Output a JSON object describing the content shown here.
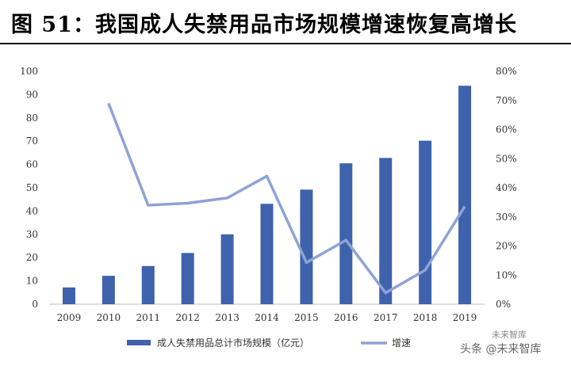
{
  "title": "图 51：我国成人失禁用品市场规模增速恢复高增长",
  "watermark": "头条 @未来智库",
  "watermark_small": "未来智库",
  "colors": {
    "bar": "#3F62AD",
    "line": "#8EA3D5",
    "axis": "#BFBFBF",
    "text": "#333333"
  },
  "chart_data": {
    "type": "bar",
    "categories": [
      "2009",
      "2010",
      "2011",
      "2012",
      "2013",
      "2014",
      "2015",
      "2016",
      "2017",
      "2018",
      "2019"
    ],
    "series": [
      {
        "name": "成人失禁用品总计市场规模（亿元）",
        "type": "bar",
        "axis": "left",
        "values": [
          7.2,
          12.2,
          16.4,
          22.0,
          30.0,
          43.1,
          49.2,
          60.5,
          62.8,
          70.2,
          93.8
        ]
      },
      {
        "name": "增速",
        "type": "line",
        "axis": "right",
        "values": [
          null,
          0.69,
          0.34,
          0.347,
          0.365,
          0.44,
          0.143,
          0.22,
          0.039,
          0.117,
          0.336
        ]
      }
    ],
    "y_left": {
      "min": 0,
      "max": 100,
      "ticks": [
        "0",
        "10",
        "20",
        "30",
        "40",
        "50",
        "60",
        "70",
        "80",
        "90",
        "100"
      ]
    },
    "y_right": {
      "min": 0,
      "max": 0.8,
      "ticks": [
        "0%",
        "10%",
        "20%",
        "30%",
        "40%",
        "50%",
        "60%",
        "70%",
        "80%"
      ]
    },
    "grid": false,
    "legend_position": "bottom"
  }
}
